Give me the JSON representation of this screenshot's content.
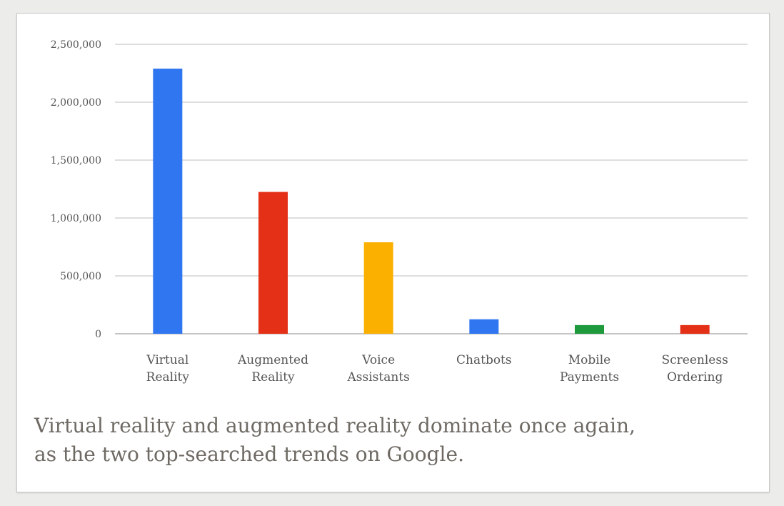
{
  "chart_data": {
    "type": "bar",
    "categories": [
      [
        "Virtual",
        "Reality"
      ],
      [
        "Augmented",
        "Reality"
      ],
      [
        "Voice",
        "Assistants"
      ],
      [
        "Chatbots"
      ],
      [
        "Mobile",
        "Payments"
      ],
      [
        "Screenless",
        "Ordering"
      ]
    ],
    "values": [
      2290000,
      1225000,
      790000,
      125000,
      75000,
      75000
    ],
    "colors": [
      "#2f76f0",
      "#e53018",
      "#fbb000",
      "#2f76f0",
      "#1e9a3c",
      "#e53018"
    ],
    "ylim": [
      0,
      2500000
    ],
    "yticks": [
      0,
      500000,
      1000000,
      1500000,
      2000000,
      2500000
    ],
    "ytick_labels": [
      "0",
      "500,000",
      "1,000,000",
      "1,500,000",
      "2,000,000",
      "2,500,000"
    ],
    "grid": true,
    "title": "",
    "xlabel": "",
    "ylabel": ""
  },
  "caption": {
    "line1": "Virtual reality and augmented reality dominate once again,",
    "line2": "as the two top-searched trends on Google."
  }
}
